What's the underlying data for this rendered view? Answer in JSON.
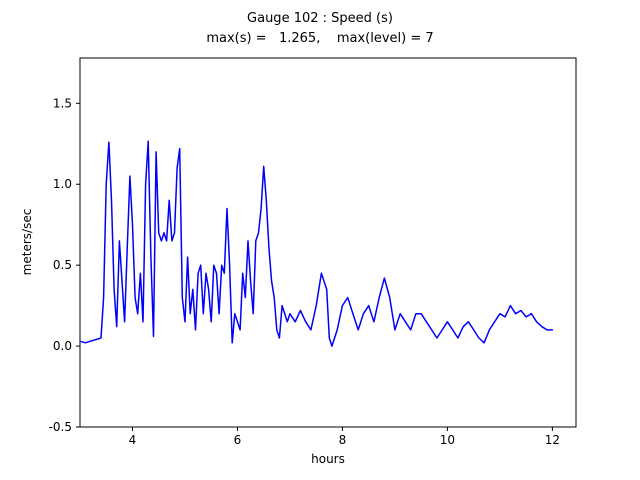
{
  "header": {
    "title": "Gauge 102 : Speed (s)",
    "subtitle": "max(s) =   1.265,    max(level) = 7"
  },
  "chart_data": {
    "type": "line",
    "title": "Gauge 102 : Speed (s)",
    "subtitle": "max(s) =   1.265,    max(level) = 7",
    "xlabel": "hours",
    "ylabel": "meters/sec",
    "xlim": [
      3.0,
      12.45
    ],
    "ylim": [
      -0.5,
      1.78
    ],
    "xticks": [
      4,
      6,
      8,
      10,
      12
    ],
    "xtick_labels": [
      "4",
      "6",
      "8",
      "10",
      "12"
    ],
    "yticks": [
      -0.5,
      0.0,
      0.5,
      1.0,
      1.5
    ],
    "ytick_labels": [
      "-0.5",
      "0.0",
      "0.5",
      "1.0",
      "1.5"
    ],
    "grid": false,
    "legend": "none",
    "line_color": "#0000ff",
    "max_s": 1.265,
    "max_level": 7,
    "series_name": "Speed (s)",
    "x": [
      3.0,
      3.1,
      3.2,
      3.3,
      3.4,
      3.45,
      3.5,
      3.55,
      3.6,
      3.65,
      3.7,
      3.75,
      3.8,
      3.85,
      3.9,
      3.95,
      4.0,
      4.05,
      4.1,
      4.15,
      4.2,
      4.25,
      4.3,
      4.35,
      4.4,
      4.45,
      4.5,
      4.55,
      4.6,
      4.65,
      4.7,
      4.75,
      4.8,
      4.85,
      4.9,
      4.95,
      5.0,
      5.05,
      5.1,
      5.15,
      5.2,
      5.25,
      5.3,
      5.35,
      5.4,
      5.45,
      5.5,
      5.55,
      5.6,
      5.65,
      5.7,
      5.75,
      5.8,
      5.85,
      5.9,
      5.95,
      6.0,
      6.05,
      6.1,
      6.15,
      6.2,
      6.25,
      6.3,
      6.35,
      6.4,
      6.45,
      6.5,
      6.55,
      6.6,
      6.65,
      6.7,
      6.75,
      6.8,
      6.85,
      6.9,
      6.95,
      7.0,
      7.1,
      7.2,
      7.3,
      7.4,
      7.5,
      7.6,
      7.7,
      7.75,
      7.8,
      7.9,
      8.0,
      8.1,
      8.2,
      8.3,
      8.4,
      8.5,
      8.6,
      8.7,
      8.8,
      8.9,
      9.0,
      9.1,
      9.2,
      9.3,
      9.4,
      9.5,
      9.6,
      9.7,
      9.8,
      9.9,
      10.0,
      10.1,
      10.2,
      10.3,
      10.4,
      10.5,
      10.6,
      10.7,
      10.8,
      10.9,
      11.0,
      11.1,
      11.2,
      11.3,
      11.4,
      11.5,
      11.6,
      11.7,
      11.8,
      11.9,
      12.0
    ],
    "y": [
      0.03,
      0.02,
      0.03,
      0.04,
      0.05,
      0.3,
      1.0,
      1.26,
      0.9,
      0.35,
      0.12,
      0.65,
      0.4,
      0.15,
      0.6,
      1.05,
      0.75,
      0.3,
      0.2,
      0.45,
      0.15,
      1.0,
      1.265,
      0.55,
      0.06,
      1.2,
      0.7,
      0.65,
      0.7,
      0.65,
      0.9,
      0.65,
      0.7,
      1.1,
      1.22,
      0.3,
      0.15,
      0.55,
      0.2,
      0.35,
      0.1,
      0.45,
      0.5,
      0.2,
      0.45,
      0.35,
      0.15,
      0.5,
      0.45,
      0.2,
      0.5,
      0.45,
      0.85,
      0.5,
      0.02,
      0.2,
      0.15,
      0.1,
      0.45,
      0.3,
      0.65,
      0.4,
      0.2,
      0.65,
      0.7,
      0.85,
      1.11,
      0.9,
      0.6,
      0.4,
      0.3,
      0.1,
      0.05,
      0.25,
      0.2,
      0.15,
      0.2,
      0.15,
      0.22,
      0.15,
      0.1,
      0.25,
      0.45,
      0.35,
      0.05,
      0.0,
      0.1,
      0.25,
      0.3,
      0.2,
      0.1,
      0.2,
      0.25,
      0.15,
      0.3,
      0.42,
      0.3,
      0.1,
      0.2,
      0.15,
      0.1,
      0.2,
      0.2,
      0.15,
      0.1,
      0.05,
      0.1,
      0.15,
      0.1,
      0.05,
      0.12,
      0.15,
      0.1,
      0.05,
      0.02,
      0.1,
      0.15,
      0.2,
      0.18,
      0.25,
      0.2,
      0.22,
      0.18,
      0.2,
      0.15,
      0.12,
      0.1,
      0.1
    ]
  }
}
